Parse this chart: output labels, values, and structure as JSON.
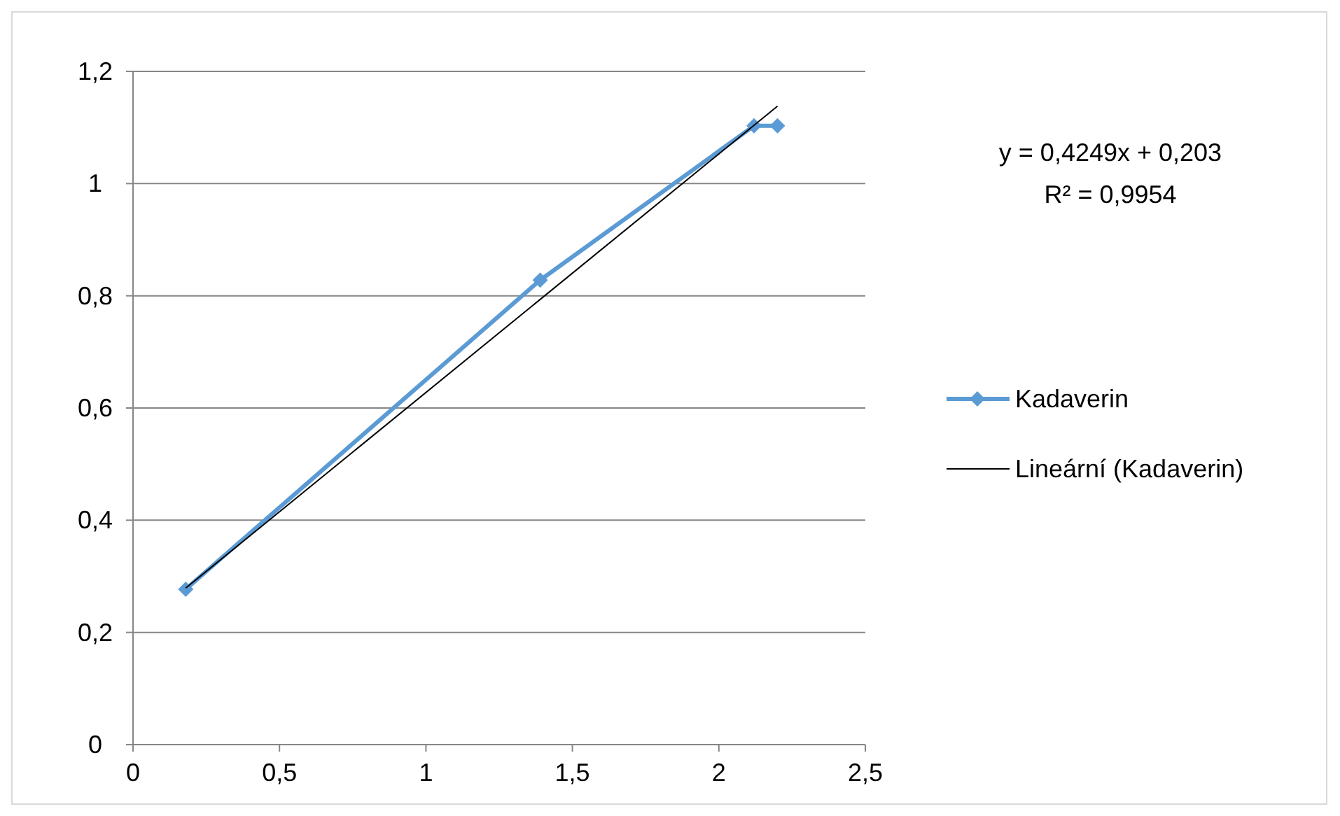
{
  "chart_data": {
    "type": "line",
    "xlim": [
      0,
      2.5
    ],
    "xticks": [
      {
        "value": 0,
        "label": "0"
      },
      {
        "value": 0.5,
        "label": "0,5"
      },
      {
        "value": 1,
        "label": "1"
      },
      {
        "value": 1.5,
        "label": "1,5"
      },
      {
        "value": 2,
        "label": "2"
      },
      {
        "value": 2.5,
        "label": "2,5"
      }
    ],
    "ylim": [
      0,
      1.2
    ],
    "yticks": [
      {
        "value": 0,
        "label": "0"
      },
      {
        "value": 0.2,
        "label": "0,2"
      },
      {
        "value": 0.4,
        "label": "0,4"
      },
      {
        "value": 0.6,
        "label": "0,6"
      },
      {
        "value": 0.8,
        "label": "0,8"
      },
      {
        "value": 1,
        "label": "1"
      },
      {
        "value": 1.2,
        "label": "1,2"
      }
    ],
    "grid": "y",
    "legend": "right",
    "series": [
      {
        "name": "Kadaverin",
        "color": "#5b9bd5",
        "x": [
          0.18,
          1.39,
          2.12,
          2.2
        ],
        "values": [
          0.277,
          0.828,
          1.103,
          1.103
        ],
        "marker": "diamond"
      },
      {
        "name": "Lineární (Kadaverin)",
        "type": "line",
        "color": "#000000",
        "x": [
          0.18,
          2.2
        ],
        "values": [
          0.279,
          1.138
        ],
        "marker": "none"
      }
    ],
    "annotations": [
      "y = 0,4249x + 0,203",
      "R² = 0,9954"
    ]
  }
}
